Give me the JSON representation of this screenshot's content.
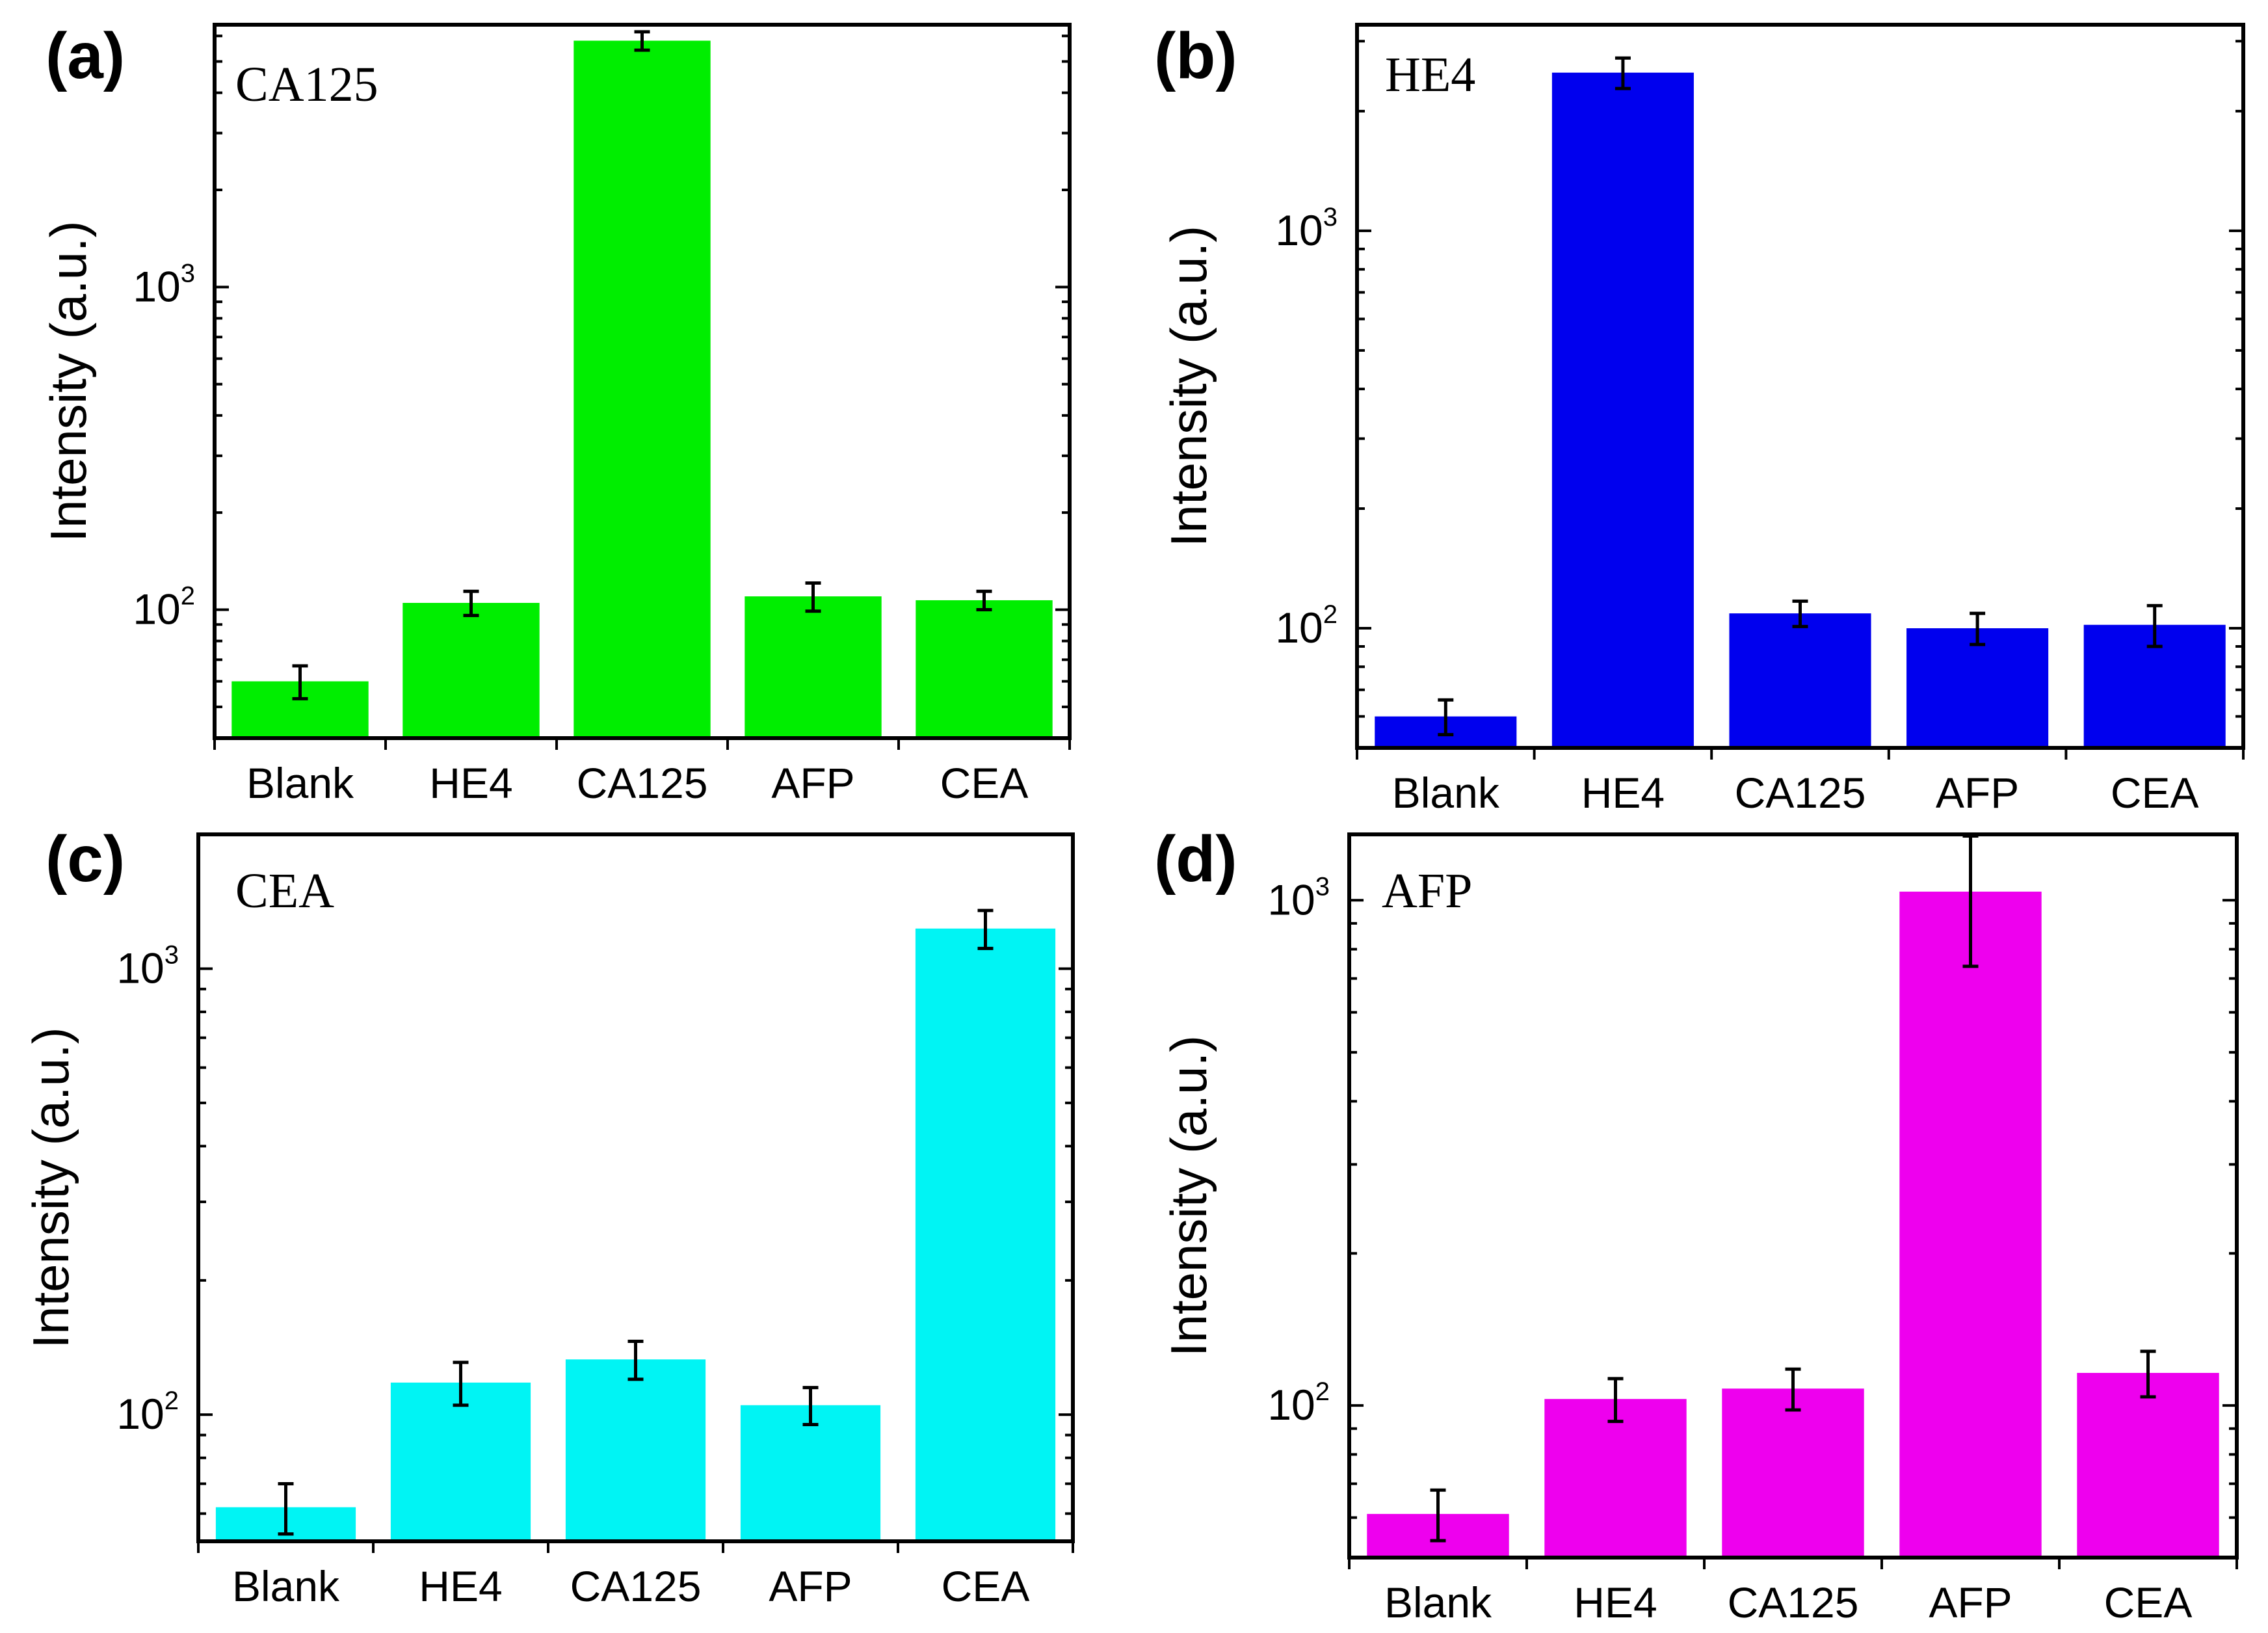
{
  "colors": {
    "green": "#00ee00",
    "blue": "#0000ee",
    "cyan": "#00f4f4",
    "magenta": "#ee00ee",
    "axis": "#000000"
  },
  "chart_data": [
    {
      "type": "bar",
      "panel": "(a)",
      "label": "CA125",
      "ylabel": "Intensity (a.u.)",
      "yscale": "log",
      "ylim": [
        40,
        6500
      ],
      "color": "#00ee00",
      "categories": [
        "Blank",
        "HE4",
        "CA125",
        "AFP",
        "CEA"
      ],
      "values": [
        60,
        105,
        5800,
        110,
        107
      ],
      "errors": [
        7,
        9,
        380,
        11,
        7
      ],
      "yticks": [
        {
          "base": "10",
          "exp": "2",
          "value": 100
        },
        {
          "base": "10",
          "exp": "3",
          "value": 1000
        }
      ]
    },
    {
      "type": "bar",
      "panel": "(b)",
      "label": "HE4",
      "ylabel": "Intensity (a.u.)",
      "yscale": "log",
      "ylim": [
        50,
        3300
      ],
      "color": "#0000ee",
      "categories": [
        "Blank",
        "HE4",
        "CA125",
        "AFP",
        "CEA"
      ],
      "values": [
        60,
        2500,
        109,
        100,
        102
      ],
      "errors": [
        6,
        220,
        8,
        9,
        12
      ],
      "yticks": [
        {
          "base": "10",
          "exp": "2",
          "value": 100
        },
        {
          "base": "10",
          "exp": "3",
          "value": 1000
        }
      ]
    },
    {
      "type": "bar",
      "panel": "(c)",
      "label": "CEA",
      "ylabel": "Intensity (a.u.)",
      "yscale": "log",
      "ylim": [
        52,
        2000
      ],
      "color": "#00f4f4",
      "categories": [
        "Blank",
        "HE4",
        "CA125",
        "AFP",
        "CEA"
      ],
      "values": [
        62,
        118,
        133,
        105,
        1230
      ],
      "errors": [
        8,
        13,
        13,
        10,
        120
      ],
      "yticks": [
        {
          "base": "10",
          "exp": "2",
          "value": 100
        },
        {
          "base": "10",
          "exp": "3",
          "value": 1000
        }
      ]
    },
    {
      "type": "bar",
      "panel": "(d)",
      "label": "AFP",
      "ylabel": "Intensity (a.u.)",
      "yscale": "log",
      "ylim": [
        50,
        1350
      ],
      "color": "#ee00ee",
      "categories": [
        "Blank",
        "HE4",
        "CA125",
        "AFP",
        "CEA"
      ],
      "values": [
        61,
        103,
        108,
        1040,
        116
      ],
      "errors": [
        7,
        10,
        10,
        300,
        12
      ],
      "yticks": [
        {
          "base": "10",
          "exp": "2",
          "value": 100
        },
        {
          "base": "10",
          "exp": "3",
          "value": 1000
        }
      ]
    }
  ]
}
